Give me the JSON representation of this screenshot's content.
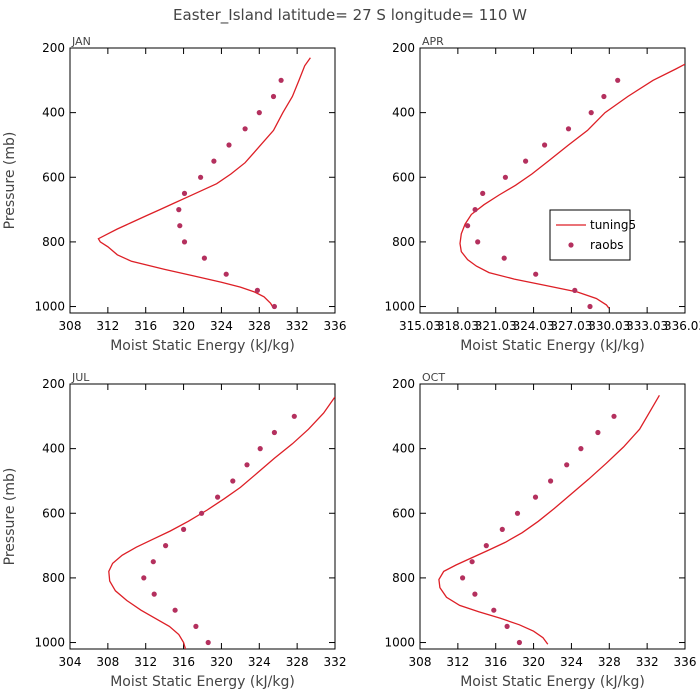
{
  "chart_data": {
    "type": "line",
    "title": "Easter_Island  latitude= 27 S longitude= 110 W",
    "legend": {
      "position": "inside-right",
      "model_label": "tuning5",
      "obs_label": "raobs"
    },
    "panels": [
      {
        "id": "jan",
        "label": "JAN",
        "xlabel": "Moist Static Energy (kJ/kg)",
        "ylabel": "Pressure (mb)",
        "xlim": [
          308,
          336
        ],
        "ylim": [
          1020,
          200
        ],
        "xticks": [
          308,
          312,
          316,
          320,
          324,
          328,
          332,
          336
        ],
        "xticklabels": [
          "308",
          "312",
          "316",
          "320",
          "324",
          "328",
          "332",
          "336"
        ],
        "yticks": [
          200,
          400,
          600,
          800,
          1000
        ],
        "yticklabels": [
          "200",
          "400",
          "600",
          "800",
          "1000"
        ],
        "model": [
          [
            329.6,
            1005
          ],
          [
            329.4,
            1000
          ],
          [
            329.2,
            990
          ],
          [
            328.5,
            970
          ],
          [
            327.5,
            955
          ],
          [
            326,
            940
          ],
          [
            324,
            925
          ],
          [
            321,
            905
          ],
          [
            318,
            885
          ],
          [
            314.5,
            860
          ],
          [
            313,
            840
          ],
          [
            312,
            815
          ],
          [
            311.2,
            800
          ],
          [
            311,
            790
          ],
          [
            312,
            775
          ],
          [
            313,
            760
          ],
          [
            314.5,
            740
          ],
          [
            316,
            720
          ],
          [
            317.5,
            700
          ],
          [
            319,
            680
          ],
          [
            320.5,
            660
          ],
          [
            322,
            640
          ],
          [
            323.5,
            620
          ],
          [
            325,
            590
          ],
          [
            326.5,
            555
          ],
          [
            328,
            505
          ],
          [
            329.5,
            455
          ],
          [
            330.5,
            400
          ],
          [
            331.5,
            350
          ],
          [
            332.2,
            300
          ],
          [
            332.8,
            255
          ],
          [
            333.4,
            230
          ]
        ],
        "obs": [
          [
            329.6,
            1000
          ],
          [
            327.8,
            950
          ],
          [
            324.5,
            900
          ],
          [
            322.2,
            850
          ],
          [
            320.1,
            800
          ],
          [
            319.6,
            750
          ],
          [
            319.5,
            700
          ],
          [
            320.1,
            650
          ],
          [
            321.8,
            600
          ],
          [
            323.2,
            550
          ],
          [
            324.8,
            500
          ],
          [
            326.5,
            450
          ],
          [
            328.0,
            400
          ],
          [
            329.5,
            350
          ],
          [
            330.3,
            300
          ]
        ]
      },
      {
        "id": "apr",
        "label": "APR",
        "xlabel": "Moist Static Energy (kJ/kg)",
        "ylabel": "",
        "xlim": [
          315.03,
          336.03
        ],
        "ylim": [
          1020,
          200
        ],
        "xticks": [
          315.03,
          318.03,
          321.03,
          324.03,
          327.03,
          330.03,
          333.03,
          336.03
        ],
        "xticklabels": [
          "315.03",
          "318.03",
          "321.03",
          "324.03",
          "327.03",
          "330.03",
          "333.03",
          "336.03"
        ],
        "yticks": [
          200,
          400,
          600,
          800,
          1000
        ],
        "yticklabels": [
          "200",
          "400",
          "600",
          "800",
          "1000"
        ],
        "model": [
          [
            330,
            1005
          ],
          [
            329.8,
            995
          ],
          [
            329,
            975
          ],
          [
            327.5,
            955
          ],
          [
            325,
            935
          ],
          [
            322.5,
            915
          ],
          [
            320.5,
            895
          ],
          [
            319.5,
            875
          ],
          [
            318.8,
            855
          ],
          [
            318.3,
            830
          ],
          [
            318.2,
            805
          ],
          [
            318.3,
            775
          ],
          [
            318.6,
            745
          ],
          [
            319.1,
            715
          ],
          [
            320.1,
            685
          ],
          [
            321.3,
            655
          ],
          [
            322.6,
            625
          ],
          [
            323.9,
            590
          ],
          [
            325.2,
            550
          ],
          [
            326.8,
            500
          ],
          [
            328.3,
            455
          ],
          [
            329.7,
            400
          ],
          [
            331.5,
            350
          ],
          [
            333.5,
            300
          ],
          [
            335.3,
            265
          ],
          [
            336.03,
            250
          ]
        ],
        "obs": [
          [
            328.5,
            1000
          ],
          [
            327.3,
            950
          ],
          [
            324.2,
            900
          ],
          [
            321.7,
            850
          ],
          [
            319.6,
            800
          ],
          [
            318.8,
            750
          ],
          [
            319.4,
            700
          ],
          [
            320.0,
            650
          ],
          [
            321.8,
            600
          ],
          [
            323.4,
            550
          ],
          [
            324.9,
            500
          ],
          [
            326.8,
            450
          ],
          [
            328.6,
            400
          ],
          [
            329.6,
            350
          ],
          [
            330.7,
            300
          ]
        ]
      },
      {
        "id": "jul",
        "label": "JUL",
        "xlabel": "Moist Static Energy (kJ/kg)",
        "ylabel": "Pressure (mb)",
        "xlim": [
          304,
          332
        ],
        "ylim": [
          1020,
          200
        ],
        "xticks": [
          304,
          308,
          312,
          316,
          320,
          324,
          328,
          332
        ],
        "xticklabels": [
          "304",
          "308",
          "312",
          "316",
          "320",
          "324",
          "328",
          "332"
        ],
        "yticks": [
          200,
          400,
          600,
          800,
          1000
        ],
        "yticklabels": [
          "200",
          "400",
          "600",
          "800",
          "1000"
        ],
        "model": [
          [
            316.2,
            1020
          ],
          [
            316,
            1000
          ],
          [
            315.5,
            975
          ],
          [
            314.5,
            950
          ],
          [
            313,
            925
          ],
          [
            311.5,
            900
          ],
          [
            310,
            870
          ],
          [
            308.8,
            840
          ],
          [
            308.2,
            810
          ],
          [
            308.1,
            780
          ],
          [
            308.5,
            755
          ],
          [
            309.5,
            730
          ],
          [
            311,
            705
          ],
          [
            312.8,
            680
          ],
          [
            314.6,
            655
          ],
          [
            316.5,
            625
          ],
          [
            318.5,
            590
          ],
          [
            320.3,
            555
          ],
          [
            322,
            520
          ],
          [
            323.8,
            475
          ],
          [
            325.6,
            430
          ],
          [
            327.5,
            385
          ],
          [
            329.2,
            340
          ],
          [
            330.8,
            290
          ],
          [
            332,
            240
          ]
        ],
        "obs": [
          [
            318.6,
            1000
          ],
          [
            317.3,
            950
          ],
          [
            315.1,
            900
          ],
          [
            312.9,
            850
          ],
          [
            311.8,
            800
          ],
          [
            312.8,
            750
          ],
          [
            314.1,
            700
          ],
          [
            316.0,
            650
          ],
          [
            317.9,
            600
          ],
          [
            319.6,
            550
          ],
          [
            321.2,
            500
          ],
          [
            322.7,
            450
          ],
          [
            324.1,
            400
          ],
          [
            325.6,
            350
          ],
          [
            327.7,
            300
          ]
        ]
      },
      {
        "id": "oct",
        "label": "OCT",
        "xlabel": "Moist Static Energy (kJ/kg)",
        "ylabel": "",
        "xlim": [
          308,
          336
        ],
        "ylim": [
          1020,
          200
        ],
        "xticks": [
          308,
          312,
          316,
          320,
          324,
          328,
          332,
          336
        ],
        "xticklabels": [
          "308",
          "312",
          "316",
          "320",
          "324",
          "328",
          "332",
          "336"
        ],
        "yticks": [
          200,
          400,
          600,
          800,
          1000
        ],
        "yticklabels": [
          "200",
          "400",
          "600",
          "800",
          "1000"
        ],
        "model": [
          [
            321.5,
            1005
          ],
          [
            321,
            985
          ],
          [
            320,
            965
          ],
          [
            318.5,
            945
          ],
          [
            316.5,
            925
          ],
          [
            314.2,
            905
          ],
          [
            312.2,
            885
          ],
          [
            310.8,
            860
          ],
          [
            310.1,
            830
          ],
          [
            310,
            805
          ],
          [
            310.5,
            780
          ],
          [
            311.8,
            760
          ],
          [
            313.3,
            740
          ],
          [
            315.2,
            715
          ],
          [
            317,
            690
          ],
          [
            318.8,
            660
          ],
          [
            320.5,
            625
          ],
          [
            322.2,
            585
          ],
          [
            324,
            540
          ],
          [
            325.8,
            495
          ],
          [
            327.7,
            445
          ],
          [
            329.5,
            395
          ],
          [
            331.2,
            340
          ],
          [
            332.5,
            275
          ],
          [
            333.3,
            235
          ]
        ],
        "obs": [
          [
            318.5,
            1000
          ],
          [
            317.2,
            950
          ],
          [
            315.8,
            900
          ],
          [
            313.8,
            850
          ],
          [
            312.5,
            800
          ],
          [
            313.5,
            750
          ],
          [
            315.0,
            700
          ],
          [
            316.7,
            650
          ],
          [
            318.3,
            600
          ],
          [
            320.2,
            550
          ],
          [
            321.8,
            500
          ],
          [
            323.5,
            450
          ],
          [
            325.0,
            400
          ],
          [
            326.8,
            350
          ],
          [
            328.5,
            300
          ]
        ]
      }
    ]
  }
}
